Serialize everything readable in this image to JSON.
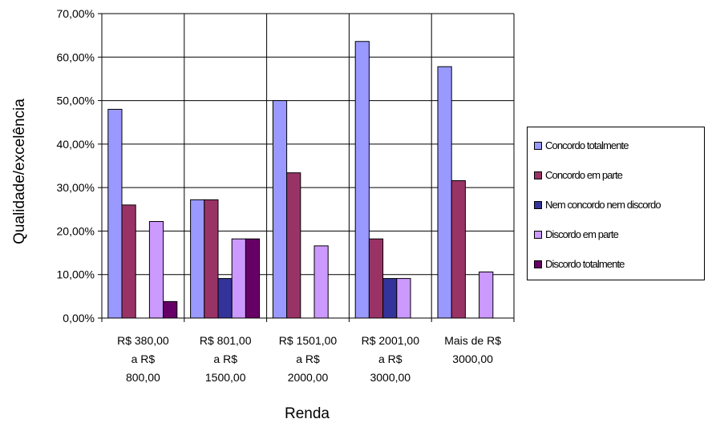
{
  "chart_data": {
    "type": "bar",
    "title": "",
    "xlabel": "Renda",
    "ylabel": "Qualidade/excelência",
    "ylim": [
      0,
      70
    ],
    "yticks": [
      "0,00%",
      "10,00%",
      "20,00%",
      "30,00%",
      "40,00%",
      "50,00%",
      "60,00%",
      "70,00%"
    ],
    "grid": true,
    "legend_position": "right",
    "categories": [
      [
        "R$ 380,00",
        "a R$",
        "800,00"
      ],
      [
        "R$ 801,00",
        "a R$",
        "1500,00"
      ],
      [
        "R$ 1501,00",
        "a R$",
        "2000,00"
      ],
      [
        "R$ 2001,00",
        "a R$",
        "3000,00"
      ],
      [
        "Mais de R$",
        "3000,00"
      ]
    ],
    "series": [
      {
        "name": "Concordo totalmente",
        "color": "#9999ff",
        "values": [
          48.0,
          27.2,
          50.0,
          63.6,
          57.8
        ]
      },
      {
        "name": "Concordo em parte",
        "color": "#993366",
        "values": [
          26.0,
          27.2,
          33.4,
          18.2,
          31.6
        ]
      },
      {
        "name": "Nem concordo nem discordo",
        "color": "#333399",
        "values": [
          0,
          9.1,
          0,
          9.1,
          0
        ]
      },
      {
        "name": "Discordo em parte",
        "color": "#cc99ff",
        "values": [
          22.2,
          18.2,
          16.6,
          9.1,
          10.6
        ]
      },
      {
        "name": "Discordo totalmente",
        "color": "#660066",
        "values": [
          3.8,
          18.2,
          0,
          0,
          0
        ]
      }
    ]
  }
}
